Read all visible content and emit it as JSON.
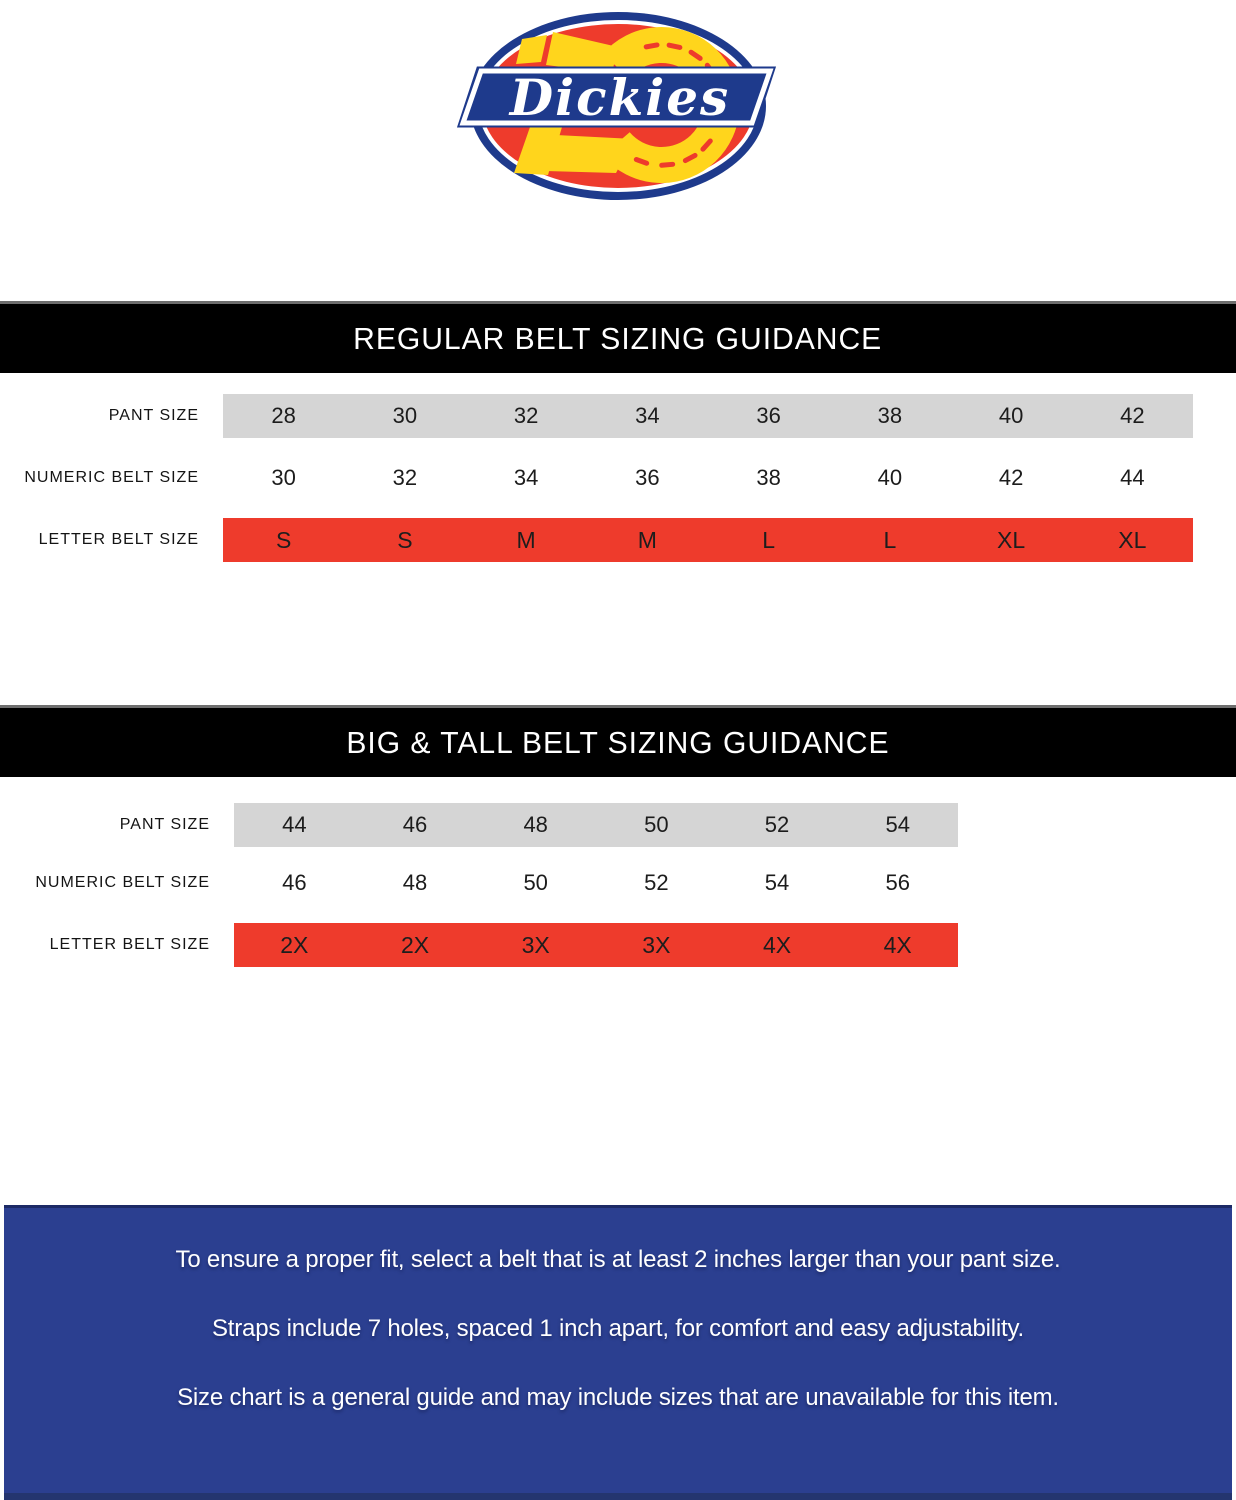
{
  "logo": {
    "brand": "Dickies"
  },
  "colors": {
    "logo_red": "#ee3b2c",
    "logo_blue": "#1e3a8c",
    "logo_yellow": "#ffd51c",
    "bar_gray": "#d5d5d5",
    "bar_red": "#ee3b2c",
    "banner_black": "#000000",
    "footer_blue": "#2b3f90"
  },
  "chart_data": [
    {
      "type": "table",
      "title": "REGULAR BELT SIZING GUIDANCE",
      "rows": [
        {
          "label": "PANT SIZE",
          "values": [
            "28",
            "30",
            "32",
            "34",
            "36",
            "38",
            "40",
            "42"
          ]
        },
        {
          "label": "NUMERIC BELT SIZE",
          "values": [
            "30",
            "32",
            "34",
            "36",
            "38",
            "40",
            "42",
            "44"
          ]
        },
        {
          "label": "LETTER BELT SIZE",
          "values": [
            "S",
            "S",
            "M",
            "M",
            "L",
            "L",
            "XL",
            "XL"
          ]
        }
      ]
    },
    {
      "type": "table",
      "title": "BIG & TALL BELT SIZING GUIDANCE",
      "rows": [
        {
          "label": "PANT SIZE",
          "values": [
            "44",
            "46",
            "48",
            "50",
            "52",
            "54"
          ]
        },
        {
          "label": "NUMERIC BELT SIZE",
          "values": [
            "46",
            "48",
            "50",
            "52",
            "54",
            "56"
          ]
        },
        {
          "label": "LETTER BELT SIZE",
          "values": [
            "2X",
            "2X",
            "3X",
            "3X",
            "4X",
            "4X"
          ]
        }
      ]
    }
  ],
  "footer": {
    "lines": [
      "To ensure a proper fit, select a belt that is at least 2 inches larger than your pant size.",
      "Straps include 7 holes, spaced 1 inch apart, for comfort and easy adjustability.",
      "Size chart is a general guide and may include sizes that are unavailable for this item."
    ]
  }
}
